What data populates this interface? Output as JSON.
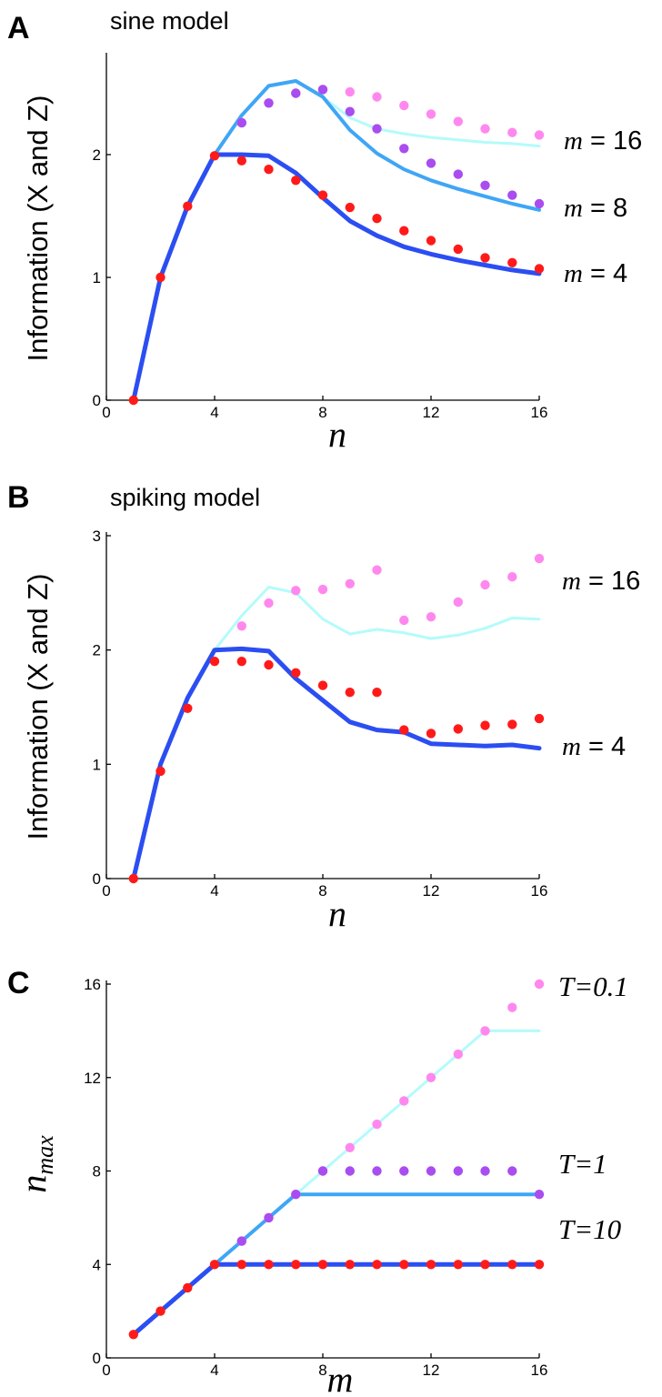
{
  "chart_data": [
    {
      "id": "A",
      "type": "line",
      "panel_letter": "A",
      "title": "sine model",
      "xlabel": "n",
      "ylabel": "Information (X and Z)",
      "xlim": [
        0,
        16
      ],
      "ylim": [
        0,
        2.8
      ],
      "xticks": [
        0,
        4,
        8,
        12,
        16
      ],
      "yticks": [
        0,
        1,
        2
      ],
      "series": [
        {
          "name": "m = 16",
          "label_prefix": "m",
          "label_suffix": " = 16",
          "line_color": "#b4fbfb",
          "dot_color": "#ff88ee",
          "line_width": 3,
          "line_x": [
            1,
            2,
            3,
            4,
            5,
            6,
            7,
            8,
            9,
            10,
            11,
            12,
            13,
            14,
            15,
            16
          ],
          "line_y": [
            0,
            1,
            1.58,
            2,
            2.32,
            2.56,
            2.6,
            2.47,
            2.3,
            2.21,
            2.17,
            2.14,
            2.12,
            2.1,
            2.09,
            2.07
          ],
          "dot_x": [
            5,
            6,
            7,
            8,
            9,
            10,
            11,
            12,
            13,
            14,
            15,
            16
          ],
          "dot_y": [
            2.26,
            2.42,
            2.5,
            2.53,
            2.51,
            2.47,
            2.4,
            2.33,
            2.27,
            2.21,
            2.18,
            2.16
          ]
        },
        {
          "name": "m = 8",
          "label_prefix": "m",
          "label_suffix": " = 8",
          "line_color": "#3fa6f5",
          "dot_color": "#a94cf0",
          "line_width": 4,
          "line_x": [
            1,
            2,
            3,
            4,
            5,
            6,
            7,
            8,
            9,
            10,
            11,
            12,
            13,
            14,
            15,
            16
          ],
          "line_y": [
            0,
            1,
            1.58,
            2,
            2.32,
            2.56,
            2.6,
            2.47,
            2.2,
            2.01,
            1.88,
            1.79,
            1.72,
            1.66,
            1.6,
            1.55
          ],
          "dot_x": [
            5,
            6,
            7,
            8,
            9,
            10,
            11,
            12,
            13,
            14,
            15,
            16
          ],
          "dot_y": [
            2.26,
            2.42,
            2.5,
            2.53,
            2.35,
            2.21,
            2.05,
            1.93,
            1.84,
            1.75,
            1.67,
            1.6
          ]
        },
        {
          "name": "m = 4",
          "label_prefix": "m",
          "label_suffix": " = 4",
          "line_color": "#2b4ef2",
          "dot_color": "#ff1a1a",
          "line_width": 5,
          "line_x": [
            1,
            2,
            3,
            4,
            5,
            6,
            7,
            8,
            9,
            10,
            11,
            12,
            13,
            14,
            15,
            16
          ],
          "line_y": [
            0,
            1,
            1.58,
            2,
            2,
            1.99,
            1.85,
            1.65,
            1.46,
            1.34,
            1.25,
            1.19,
            1.14,
            1.1,
            1.06,
            1.03
          ],
          "dot_x": [
            1,
            2,
            3,
            4,
            5,
            6,
            7,
            8,
            9,
            10,
            11,
            12,
            13,
            14,
            15,
            16
          ],
          "dot_y": [
            0,
            1,
            1.58,
            1.99,
            1.95,
            1.88,
            1.79,
            1.67,
            1.57,
            1.48,
            1.38,
            1.3,
            1.23,
            1.16,
            1.12,
            1.07
          ]
        }
      ]
    },
    {
      "id": "B",
      "type": "line",
      "panel_letter": "B",
      "title": "spiking model",
      "xlabel": "n",
      "ylabel": "Information (X and Z)",
      "xlim": [
        0,
        16
      ],
      "ylim": [
        0,
        3
      ],
      "xticks": [
        0,
        4,
        8,
        12,
        16
      ],
      "yticks": [
        0,
        1,
        2,
        3
      ],
      "series": [
        {
          "name": "m = 16",
          "label_prefix": "m",
          "label_suffix": " = 16",
          "line_color": "#b4fbfb",
          "dot_color": "#ff88ee",
          "line_width": 3,
          "line_x": [
            1,
            2,
            3,
            4,
            5,
            6,
            7,
            8,
            9,
            10,
            11,
            12,
            13,
            14,
            15,
            16
          ],
          "line_y": [
            0,
            1,
            1.58,
            2,
            2.3,
            2.55,
            2.5,
            2.27,
            2.14,
            2.18,
            2.15,
            2.1,
            2.13,
            2.19,
            2.28,
            2.27
          ],
          "dot_x": [
            5,
            6,
            7,
            8,
            9,
            10,
            11,
            12,
            13,
            14,
            15,
            16
          ],
          "dot_y": [
            2.21,
            2.41,
            2.52,
            2.53,
            2.58,
            2.7,
            2.26,
            2.29,
            2.42,
            2.57,
            2.64,
            2.8
          ]
        },
        {
          "name": "m = 4",
          "label_prefix": "m",
          "label_suffix": " = 4",
          "line_color": "#2b4ef2",
          "dot_color": "#ff1a1a",
          "line_width": 5,
          "line_x": [
            1,
            2,
            3,
            4,
            5,
            6,
            7,
            8,
            9,
            10,
            11,
            12,
            13,
            14,
            15,
            16
          ],
          "line_y": [
            0,
            1,
            1.58,
            2,
            2.01,
            1.99,
            1.75,
            1.56,
            1.37,
            1.3,
            1.28,
            1.18,
            1.17,
            1.16,
            1.17,
            1.14
          ],
          "dot_x": [
            1,
            2,
            3,
            4,
            5,
            6,
            7,
            8,
            9,
            10,
            11,
            12,
            13,
            14,
            15,
            16
          ],
          "dot_y": [
            0,
            0.94,
            1.49,
            1.9,
            1.9,
            1.87,
            1.8,
            1.69,
            1.63,
            1.63,
            1.3,
            1.27,
            1.31,
            1.34,
            1.35,
            1.4
          ]
        }
      ]
    },
    {
      "id": "C",
      "type": "line",
      "panel_letter": "C",
      "title": "",
      "xlabel": "m",
      "ylabel": "n",
      "ylabel_sub": "max",
      "xlim": [
        0,
        16
      ],
      "ylim": [
        0,
        16
      ],
      "xticks": [
        0,
        4,
        8,
        12,
        16
      ],
      "yticks": [
        0,
        4,
        8,
        12,
        16
      ],
      "series": [
        {
          "name": "T=0.1",
          "label": "T=0.1",
          "line_color": "#b4fbfb",
          "dot_color": "#ff88ee",
          "line_width": 3,
          "line_x": [
            1,
            2,
            3,
            4,
            5,
            6,
            7,
            8,
            9,
            10,
            11,
            12,
            13,
            14,
            15,
            16
          ],
          "line_y": [
            1,
            2,
            3,
            4,
            5,
            6,
            7,
            8,
            9,
            10,
            11,
            12,
            13,
            14,
            14,
            14
          ],
          "dot_x": [
            5,
            6,
            7,
            8,
            9,
            10,
            11,
            12,
            13,
            14,
            15,
            16
          ],
          "dot_y": [
            5,
            6,
            7,
            8,
            9,
            10,
            11,
            12,
            13,
            14,
            15,
            16
          ]
        },
        {
          "name": "T=1",
          "label": "T=1",
          "line_color": "#3fa6f5",
          "dot_color": "#a94cf0",
          "line_width": 4,
          "line_x": [
            1,
            2,
            3,
            4,
            5,
            6,
            7,
            8,
            9,
            10,
            11,
            12,
            13,
            14,
            15,
            16
          ],
          "line_y": [
            1,
            2,
            3,
            4,
            5,
            6,
            7,
            7,
            7,
            7,
            7,
            7,
            7,
            7,
            7,
            7
          ],
          "dot_x": [
            5,
            6,
            7,
            8,
            9,
            10,
            11,
            12,
            13,
            14,
            15,
            16
          ],
          "dot_y": [
            5,
            6,
            7,
            8,
            8,
            8,
            8,
            8,
            8,
            8,
            8,
            7
          ]
        },
        {
          "name": "T=10",
          "label": "T=10",
          "line_color": "#2b4ef2",
          "dot_color": "#ff1a1a",
          "line_width": 5,
          "line_x": [
            1,
            2,
            3,
            4,
            5,
            6,
            7,
            8,
            9,
            10,
            11,
            12,
            13,
            14,
            15,
            16
          ],
          "line_y": [
            1,
            2,
            3,
            4,
            4,
            4,
            4,
            4,
            4,
            4,
            4,
            4,
            4,
            4,
            4,
            4
          ],
          "dot_x": [
            1,
            2,
            3,
            4,
            5,
            6,
            7,
            8,
            9,
            10,
            11,
            12,
            13,
            14,
            15,
            16
          ],
          "dot_y": [
            1,
            2,
            3,
            4,
            4,
            4,
            4,
            4,
            4,
            4,
            4,
            4,
            4,
            4,
            4,
            4
          ]
        }
      ]
    }
  ]
}
